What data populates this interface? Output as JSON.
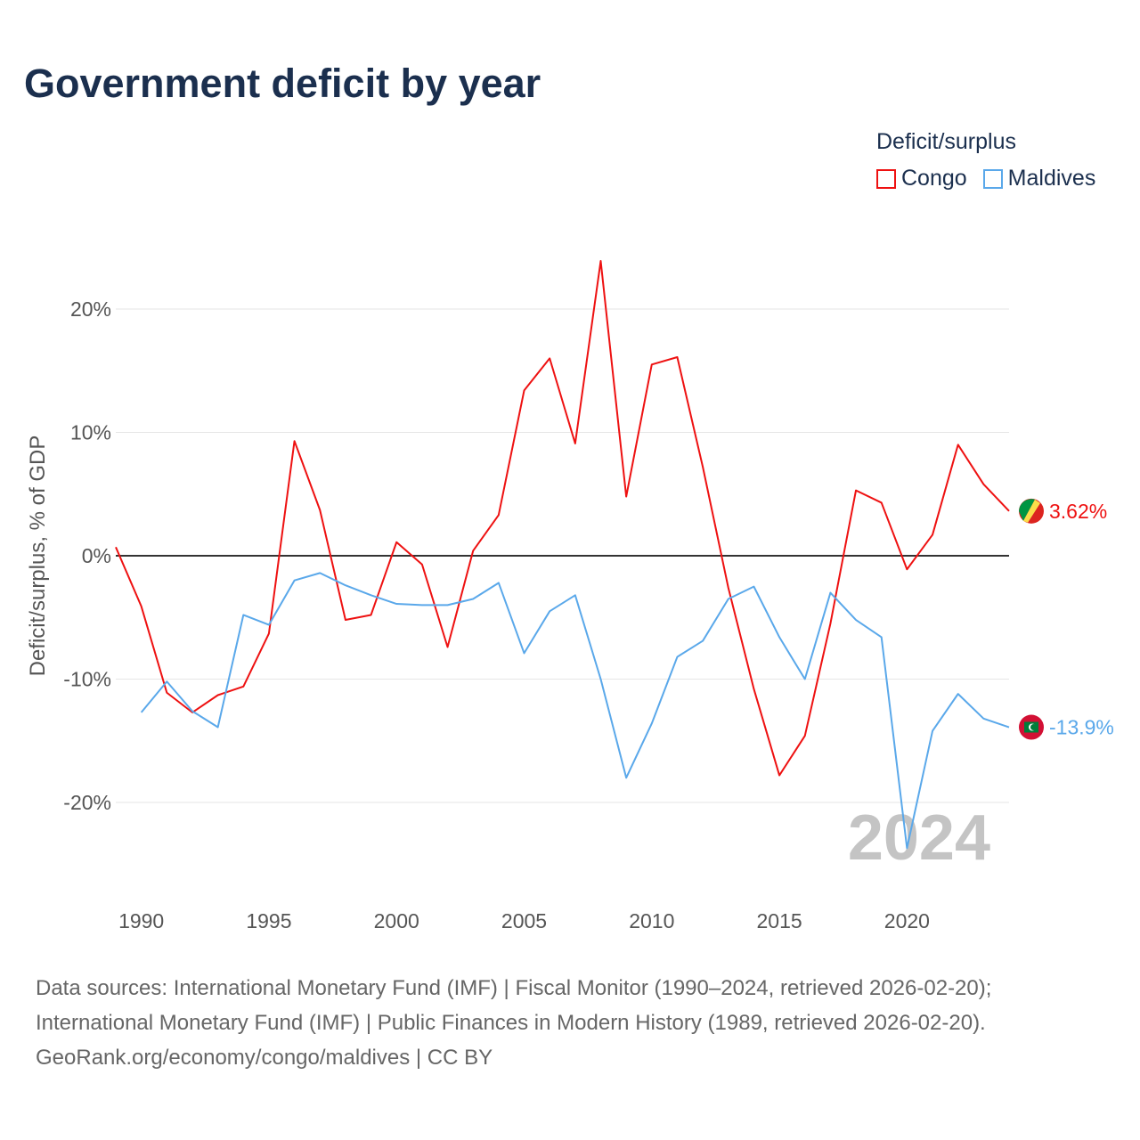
{
  "chart_data": {
    "type": "line",
    "title": "Government deficit by year",
    "ylabel": "Deficit/surplus, % of GDP",
    "xlabel": "",
    "xlim": [
      1989,
      2024
    ],
    "ylim": [
      -27,
      27
    ],
    "x_ticks": [
      1990,
      1995,
      2000,
      2005,
      2010,
      2015,
      2020
    ],
    "x_tick_labels": [
      "1990",
      "1995",
      "2000",
      "2005",
      "2010",
      "2015",
      "2020"
    ],
    "y_ticks": [
      -20,
      -10,
      0,
      10,
      20
    ],
    "y_tick_labels": [
      "-20%",
      "-10%",
      "0%",
      "10%",
      "20%"
    ],
    "grid": true,
    "legend_title": "Deficit/surplus",
    "legend_position": "top-right",
    "year_watermark": "2024",
    "series": [
      {
        "name": "Congo",
        "color": "#ee1111",
        "end_label": "3.62%",
        "x": [
          1989,
          1990,
          1991,
          1992,
          1993,
          1994,
          1995,
          1996,
          1997,
          1998,
          1999,
          2000,
          2001,
          2002,
          2003,
          2004,
          2005,
          2006,
          2007,
          2008,
          2009,
          2010,
          2011,
          2012,
          2013,
          2014,
          2015,
          2016,
          2017,
          2018,
          2019,
          2020,
          2021,
          2022,
          2023,
          2024
        ],
        "values": [
          0.7,
          -4.1,
          -11.1,
          -12.7,
          -11.3,
          -10.6,
          -6.3,
          9.3,
          3.7,
          -5.2,
          -4.8,
          1.1,
          -0.7,
          -7.4,
          0.4,
          3.3,
          13.4,
          16.0,
          9.1,
          23.9,
          4.8,
          15.5,
          16.1,
          7.2,
          -2.6,
          -10.8,
          -17.8,
          -14.6,
          -5.5,
          5.3,
          4.3,
          -1.1,
          1.7,
          9.0,
          5.8,
          3.62
        ]
      },
      {
        "name": "Maldives",
        "color": "#5aa8ea",
        "end_label": "-13.9%",
        "x": [
          1990,
          1991,
          1992,
          1993,
          1994,
          1995,
          1996,
          1997,
          1998,
          1999,
          2000,
          2001,
          2002,
          2003,
          2004,
          2005,
          2006,
          2007,
          2008,
          2009,
          2010,
          2011,
          2012,
          2013,
          2014,
          2015,
          2016,
          2017,
          2018,
          2019,
          2020,
          2021,
          2022,
          2023,
          2024
        ],
        "values": [
          -12.7,
          -10.2,
          -12.6,
          -13.9,
          -4.8,
          -5.6,
          -2.0,
          -1.4,
          -2.4,
          -3.2,
          -3.9,
          -4.0,
          -4.0,
          -3.5,
          -2.2,
          -7.9,
          -4.5,
          -3.2,
          -10.0,
          -18.0,
          -13.6,
          -8.2,
          -6.9,
          -3.5,
          -2.5,
          -6.6,
          -10.0,
          -3.0,
          -5.2,
          -6.6,
          -23.7,
          -14.2,
          -11.2,
          -13.2,
          -13.9
        ]
      }
    ]
  },
  "footer": {
    "line1": "Data sources: International Monetary Fund (IMF) | Fiscal Monitor (1990–2024, retrieved 2026-02-20);",
    "line2": "International Monetary Fund (IMF) | Public Finances in Modern History (1989, retrieved 2026-02-20).",
    "line3": "GeoRank.org/economy/congo/maldives | CC BY"
  }
}
